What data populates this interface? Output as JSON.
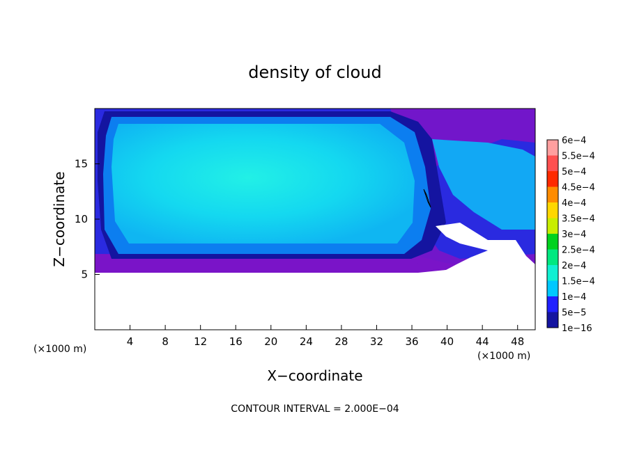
{
  "chart_data": {
    "type": "heatmap",
    "title": "density of cloud",
    "xlabel": "X−coordinate",
    "ylabel": "Z−coordinate",
    "x_unit": "(×1000 m)",
    "y_unit": "(×1000 m)",
    "xlim": [
      0,
      50
    ],
    "ylim": [
      0,
      20
    ],
    "x_ticks": [
      4,
      8,
      12,
      16,
      20,
      24,
      28,
      32,
      36,
      40,
      44,
      48
    ],
    "y_ticks": [
      5,
      10,
      15
    ],
    "footer": "CONTOUR INTERVAL = 2.000E−04",
    "colorbar": {
      "labels": [
        "6e−4",
        "5.5e−4",
        "5e−4",
        "4.5e−4",
        "4e−4",
        "3.5e−4",
        "3e−4",
        "2.5e−4",
        "2e−4",
        "1.5e−4",
        "1e−4",
        "5e−5",
        "1e−16"
      ],
      "levels": [
        0.0006,
        0.00055,
        0.0005,
        0.00045,
        0.0004,
        0.00035,
        0.0003,
        0.00025,
        0.0002,
        0.00015,
        0.0001,
        5e-05,
        1e-16
      ],
      "colors": [
        "#ff9f9f",
        "#ff5050",
        "#ff2a00",
        "#ff8c00",
        "#ffd700",
        "#c8ee00",
        "#00d21e",
        "#00e880",
        "#10f0d2",
        "#00c8ff",
        "#2020ff",
        "#1414a0",
        "#7a14c8"
      ]
    },
    "field_description_levels": {
      "cloud_base_z": 5.3,
      "cloud_top_z": 19.8,
      "max_value_region": 0.0002
    }
  }
}
